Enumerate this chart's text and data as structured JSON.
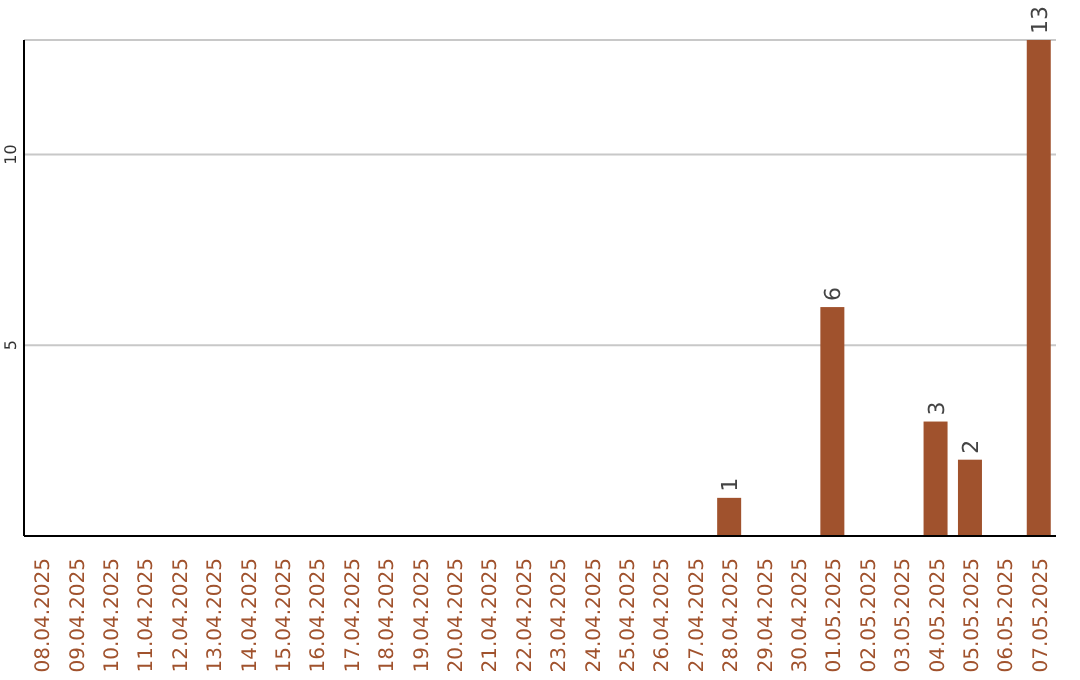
{
  "chart_data": {
    "type": "bar",
    "categories": [
      "08.04.2025",
      "09.04.2025",
      "10.04.2025",
      "11.04.2025",
      "12.04.2025",
      "13.04.2025",
      "14.04.2025",
      "15.04.2025",
      "16.04.2025",
      "17.04.2025",
      "18.04.2025",
      "19.04.2025",
      "20.04.2025",
      "21.04.2025",
      "22.04.2025",
      "23.04.2025",
      "24.04.2025",
      "25.04.2025",
      "26.04.2025",
      "27.04.2025",
      "28.04.2025",
      "29.04.2025",
      "30.04.2025",
      "01.05.2025",
      "02.05.2025",
      "03.05.2025",
      "04.05.2025",
      "05.05.2025",
      "06.05.2025",
      "07.05.2025"
    ],
    "values": [
      0,
      0,
      0,
      0,
      0,
      0,
      0,
      0,
      0,
      0,
      0,
      0,
      0,
      0,
      0,
      0,
      0,
      0,
      0,
      0,
      1,
      0,
      0,
      6,
      0,
      0,
      3,
      2,
      0,
      13
    ],
    "value_labels": [
      null,
      null,
      null,
      null,
      null,
      null,
      null,
      null,
      null,
      null,
      null,
      null,
      null,
      null,
      null,
      null,
      null,
      null,
      null,
      null,
      "1",
      null,
      null,
      "6",
      null,
      null,
      "3",
      "2",
      null,
      "13"
    ],
    "color": "#a0522d",
    "ylim": [
      0,
      13
    ],
    "yticks": [
      5,
      10
    ],
    "grid": "y",
    "legend": false
  }
}
